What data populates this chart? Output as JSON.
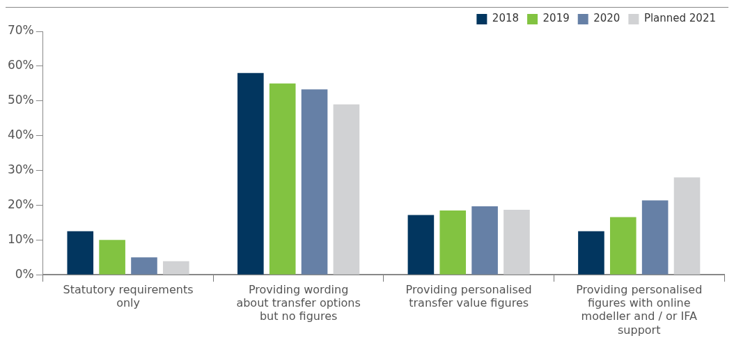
{
  "chart_data": {
    "type": "bar",
    "categories": [
      "Statutory requirements only",
      "Providing wording about transfer options but no figures",
      "Providing personalised transfer value figures",
      "Providing personalised figures with online modeller and / or IFA support"
    ],
    "series": [
      {
        "name": "2018",
        "color": "#02365f",
        "values": [
          12.5,
          58,
          17.2,
          12.5
        ]
      },
      {
        "name": "2019",
        "color": "#82c341",
        "values": [
          10,
          55,
          18.5,
          16.6
        ]
      },
      {
        "name": "2020",
        "color": "#6680a6",
        "values": [
          5,
          53.3,
          19.7,
          21.4
        ]
      },
      {
        "name": "Planned 2021",
        "color": "#d1d2d4",
        "values": [
          3.9,
          49,
          18.7,
          28
        ]
      }
    ],
    "ylim": [
      0,
      70
    ],
    "yticks": [
      {
        "value": 0,
        "label": "0%"
      },
      {
        "value": 10,
        "label": "10%"
      },
      {
        "value": 20,
        "label": "20%"
      },
      {
        "value": 30,
        "label": "30%"
      },
      {
        "value": 40,
        "label": "40%"
      },
      {
        "value": 50,
        "label": "50%"
      },
      {
        "value": 60,
        "label": "60%"
      },
      {
        "value": 70,
        "label": "70%"
      }
    ],
    "grid": false,
    "legend": "top right"
  }
}
